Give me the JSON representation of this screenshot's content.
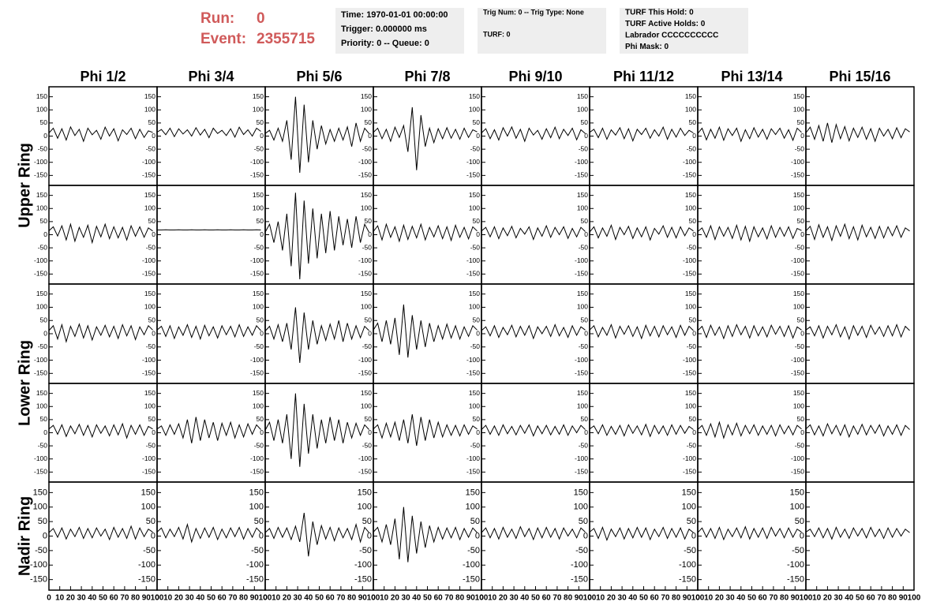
{
  "header": {
    "run_label": "Run:",
    "run": "0",
    "event_label": "Event:",
    "event": "2355715",
    "box1": [
      "Time: 1970-01-01 00:00:00",
      "Trigger: 0.000000 ms",
      "Priority: 0 -- Queue: 0"
    ],
    "box2": [
      "Trig Num: 0 -- Trig Type: None",
      "TURF: 0"
    ],
    "box3": [
      "TURF This Hold: 0",
      "TURF Active Holds: 0",
      "Labrador CCCCCCCCCC",
      "Phi Mask: 0"
    ]
  },
  "chart_data": {
    "type": "line",
    "color": "#000000",
    "columns": [
      "Phi 1/2",
      "Phi 3/4",
      "Phi 5/6",
      "Phi 7/8",
      "Phi 9/10",
      "Phi 11/12",
      "Phi 13/14",
      "Phi 15/16"
    ],
    "row_labels": [
      "Upper Ring",
      "Lower Ring",
      "Nadir Ring"
    ],
    "xlim": [
      0,
      100
    ],
    "xticks": [
      0,
      10,
      20,
      30,
      40,
      50,
      60,
      70,
      80,
      90,
      100
    ],
    "ylim": [
      -170,
      170
    ],
    "yticks": [
      -150,
      -100,
      -50,
      0,
      50,
      100,
      150
    ],
    "x": [
      0,
      4,
      8,
      12,
      16,
      20,
      24,
      28,
      32,
      36,
      40,
      44,
      48,
      52,
      56,
      60,
      64,
      68,
      72,
      76,
      80,
      84,
      88,
      92,
      96
    ],
    "panels": [
      [
        [
          12,
          30,
          -8,
          28,
          -15,
          35,
          2,
          26,
          -20,
          30,
          5,
          22,
          -12,
          34,
          0,
          28,
          -18,
          24,
          6,
          30,
          -10,
          26,
          -5,
          20,
          14
        ],
        [
          15,
          25,
          5,
          30,
          -2,
          28,
          8,
          24,
          0,
          32,
          4,
          26,
          -6,
          30,
          10,
          22,
          2,
          28,
          -4,
          34,
          6,
          24,
          0,
          30,
          18
        ],
        [
          10,
          22,
          -15,
          30,
          -20,
          60,
          -90,
          150,
          -140,
          120,
          -100,
          60,
          -50,
          40,
          -30,
          25,
          -20,
          30,
          -15,
          35,
          -40,
          50,
          -20,
          30,
          10
        ],
        [
          14,
          30,
          -10,
          26,
          -20,
          34,
          -5,
          40,
          -60,
          110,
          -130,
          80,
          -40,
          30,
          -25,
          28,
          -10,
          32,
          -8,
          26,
          -12,
          30,
          -5,
          24,
          16
        ],
        [
          12,
          28,
          -10,
          24,
          -15,
          32,
          0,
          35,
          -8,
          26,
          -20,
          30,
          4,
          22,
          -12,
          28,
          -6,
          34,
          -10,
          26,
          2,
          30,
          -14,
          24,
          10
        ],
        [
          14,
          26,
          -6,
          30,
          -12,
          24,
          4,
          32,
          -10,
          28,
          -18,
          26,
          6,
          30,
          -8,
          24,
          0,
          34,
          -12,
          26,
          -4,
          30,
          2,
          22,
          12
        ],
        [
          10,
          30,
          -14,
          26,
          -8,
          34,
          -16,
          28,
          2,
          30,
          -20,
          24,
          -10,
          32,
          -4,
          26,
          -12,
          28,
          6,
          30,
          -8,
          24,
          -16,
          30,
          14
        ],
        [
          12,
          34,
          -12,
          40,
          -20,
          50,
          -25,
          44,
          -10,
          36,
          -18,
          30,
          -5,
          34,
          -12,
          28,
          -20,
          30,
          0,
          26,
          -10,
          32,
          -6,
          28,
          16
        ]
      ],
      [
        [
          15,
          30,
          -5,
          34,
          -20,
          40,
          -25,
          28,
          -10,
          36,
          -30,
          32,
          -8,
          40,
          -15,
          30,
          -12,
          28,
          -20,
          34,
          -6,
          30,
          -10,
          26,
          14
        ],
        [
          18,
          18,
          19,
          18,
          18,
          19,
          18,
          18,
          19,
          18,
          18,
          19,
          18,
          18,
          19,
          18,
          18,
          19,
          18,
          18,
          19,
          18,
          18,
          19,
          18
        ],
        [
          10,
          40,
          -30,
          50,
          -60,
          80,
          -120,
          160,
          -170,
          130,
          -110,
          100,
          -90,
          80,
          -70,
          90,
          -60,
          70,
          -40,
          60,
          -50,
          70,
          -30,
          40,
          10
        ],
        [
          12,
          34,
          -20,
          40,
          -10,
          30,
          -25,
          36,
          -18,
          32,
          -12,
          40,
          -20,
          28,
          -8,
          34,
          -15,
          30,
          -22,
          36,
          -10,
          28,
          -16,
          30,
          14
        ],
        [
          14,
          28,
          -8,
          30,
          -15,
          26,
          -4,
          32,
          -12,
          24,
          2,
          30,
          -18,
          26,
          -6,
          34,
          -10,
          28,
          0,
          30,
          -14,
          24,
          -8,
          28,
          12
        ],
        [
          10,
          30,
          -12,
          26,
          -6,
          36,
          -18,
          28,
          0,
          32,
          -14,
          26,
          -8,
          30,
          -20,
          24,
          2,
          34,
          -10,
          28,
          -12,
          30,
          -4,
          26,
          14
        ],
        [
          12,
          26,
          -10,
          34,
          -18,
          30,
          -6,
          28,
          -14,
          36,
          -20,
          32,
          -25,
          30,
          -8,
          26,
          -16,
          34,
          -10,
          28,
          -6,
          30,
          -14,
          24,
          16
        ],
        [
          14,
          32,
          -18,
          38,
          -10,
          30,
          -22,
          34,
          -6,
          40,
          -15,
          30,
          -20,
          36,
          -8,
          28,
          -14,
          32,
          -12,
          30,
          -4,
          34,
          -10,
          26,
          14
        ]
      ],
      [
        [
          12,
          30,
          -20,
          34,
          -30,
          28,
          -10,
          36,
          -16,
          30,
          -24,
          26,
          -6,
          32,
          -12,
          28,
          -18,
          34,
          -8,
          30,
          -22,
          26,
          -4,
          30,
          14
        ],
        [
          14,
          28,
          -10,
          30,
          -18,
          26,
          -6,
          34,
          -14,
          28,
          -20,
          32,
          -8,
          26,
          -16,
          30,
          -4,
          28,
          -12,
          34,
          -10,
          26,
          -6,
          30,
          12
        ],
        [
          10,
          28,
          -20,
          34,
          -30,
          40,
          -60,
          100,
          -110,
          80,
          -60,
          50,
          -40,
          30,
          -25,
          36,
          -20,
          50,
          -30,
          40,
          -20,
          30,
          -15,
          28,
          12
        ],
        [
          14,
          40,
          -30,
          50,
          -40,
          60,
          -80,
          110,
          -90,
          70,
          -60,
          50,
          -50,
          40,
          -30,
          30,
          -20,
          36,
          -16,
          30,
          -20,
          26,
          -10,
          30,
          14
        ],
        [
          12,
          26,
          -8,
          30,
          -14,
          24,
          -4,
          32,
          -12,
          28,
          -6,
          30,
          -18,
          26,
          0,
          28,
          -10,
          34,
          -8,
          24,
          -14,
          30,
          -6,
          26,
          14
        ],
        [
          14,
          30,
          -12,
          24,
          -6,
          34,
          -16,
          28,
          -2,
          30,
          -10,
          26,
          -18,
          32,
          -8,
          28,
          -12,
          30,
          -4,
          26,
          -14,
          32,
          -6,
          28,
          12
        ],
        [
          12,
          28,
          -14,
          32,
          -6,
          26,
          -18,
          30,
          -10,
          34,
          -4,
          28,
          -16,
          30,
          -8,
          26,
          -12,
          32,
          -2,
          28,
          -10,
          30,
          -16,
          26,
          14
        ],
        [
          14,
          26,
          -8,
          30,
          -16,
          28,
          -4,
          34,
          -12,
          26,
          -20,
          30,
          -6,
          28,
          -14,
          32,
          -2,
          26,
          -10,
          30,
          -8,
          34,
          -12,
          28,
          12
        ]
      ],
      [
        [
          14,
          28,
          -6,
          30,
          -14,
          26,
          -4,
          32,
          -10,
          28,
          -16,
          30,
          -2,
          26,
          -12,
          30,
          -8,
          34,
          -20,
          28,
          -6,
          30,
          -10,
          24,
          14
        ],
        [
          14,
          26,
          -10,
          30,
          -6,
          34,
          -20,
          50,
          -40,
          60,
          -30,
          50,
          -20,
          40,
          -30,
          36,
          -10,
          40,
          -20,
          30,
          -16,
          34,
          -6,
          30,
          12
        ],
        [
          10,
          40,
          -30,
          50,
          -40,
          70,
          -100,
          150,
          -130,
          110,
          -80,
          70,
          -60,
          50,
          -40,
          60,
          -30,
          50,
          -40,
          40,
          -20,
          36,
          -10,
          30,
          12
        ],
        [
          14,
          30,
          -20,
          36,
          -16,
          40,
          -30,
          50,
          -40,
          70,
          -50,
          60,
          -30,
          50,
          -20,
          40,
          -16,
          30,
          -10,
          28,
          -12,
          30,
          -6,
          26,
          14
        ],
        [
          12,
          28,
          -6,
          26,
          -10,
          30,
          -4,
          24,
          -8,
          28,
          -2,
          30,
          -12,
          26,
          -4,
          28,
          -8,
          24,
          -6,
          30,
          -10,
          26,
          0,
          28,
          12
        ],
        [
          14,
          26,
          -4,
          30,
          -10,
          24,
          -6,
          28,
          -12,
          30,
          -2,
          26,
          -8,
          32,
          -14,
          28,
          -4,
          26,
          -10,
          30,
          -6,
          28,
          -2,
          24,
          12
        ],
        [
          12,
          28,
          -10,
          34,
          -16,
          40,
          -20,
          30,
          -8,
          36,
          -12,
          28,
          -4,
          30,
          -10,
          26,
          -6,
          28,
          -12,
          30,
          -4,
          26,
          -8,
          28,
          14
        ],
        [
          14,
          30,
          -8,
          26,
          -12,
          34,
          -4,
          28,
          -10,
          30,
          -16,
          26,
          -6,
          32,
          -8,
          28,
          -2,
          30,
          -12,
          26,
          -6,
          30,
          -10,
          28,
          12
        ]
      ],
      [
        [
          12,
          26,
          -4,
          28,
          -10,
          24,
          -2,
          30,
          -8,
          26,
          -6,
          28,
          0,
          24,
          -12,
          30,
          -4,
          26,
          -8,
          34,
          -10,
          28,
          -2,
          24,
          14
        ],
        [
          14,
          28,
          -6,
          24,
          -2,
          30,
          -10,
          40,
          -20,
          26,
          -8,
          28,
          -4,
          30,
          -12,
          24,
          -6,
          28,
          -2,
          30,
          -10,
          26,
          -4,
          28,
          12
        ],
        [
          12,
          26,
          -8,
          30,
          -4,
          28,
          -12,
          34,
          -20,
          80,
          -70,
          50,
          -30,
          36,
          -10,
          30,
          -16,
          28,
          -6,
          26,
          -12,
          40,
          -20,
          30,
          12
        ],
        [
          14,
          30,
          -20,
          40,
          -30,
          60,
          -80,
          100,
          -90,
          70,
          -60,
          50,
          -40,
          36,
          -20,
          30,
          -10,
          28,
          -6,
          30,
          -12,
          26,
          -4,
          28,
          12
        ],
        [
          12,
          28,
          -6,
          26,
          -10,
          30,
          -4,
          24,
          -8,
          32,
          -2,
          26,
          -12,
          28,
          -6,
          30,
          -4,
          26,
          -10,
          28,
          0,
          24,
          -6,
          28,
          14
        ],
        [
          14,
          26,
          -8,
          30,
          -14,
          24,
          -2,
          28,
          -10,
          26,
          -6,
          30,
          -4,
          28,
          -12,
          24,
          -2,
          30,
          -8,
          26,
          -4,
          28,
          -10,
          24,
          12
        ],
        [
          12,
          28,
          -4,
          26,
          -8,
          30,
          -12,
          24,
          -2,
          28,
          -6,
          32,
          -10,
          26,
          -4,
          28,
          -8,
          30,
          0,
          26,
          -6,
          28,
          -4,
          24,
          14
        ],
        [
          14,
          24,
          -2,
          28,
          -6,
          26,
          -10,
          30,
          -4,
          24,
          -8,
          28,
          0,
          26,
          -6,
          30,
          -2,
          24,
          -8,
          28,
          -4,
          26,
          0,
          24,
          12
        ]
      ]
    ]
  }
}
